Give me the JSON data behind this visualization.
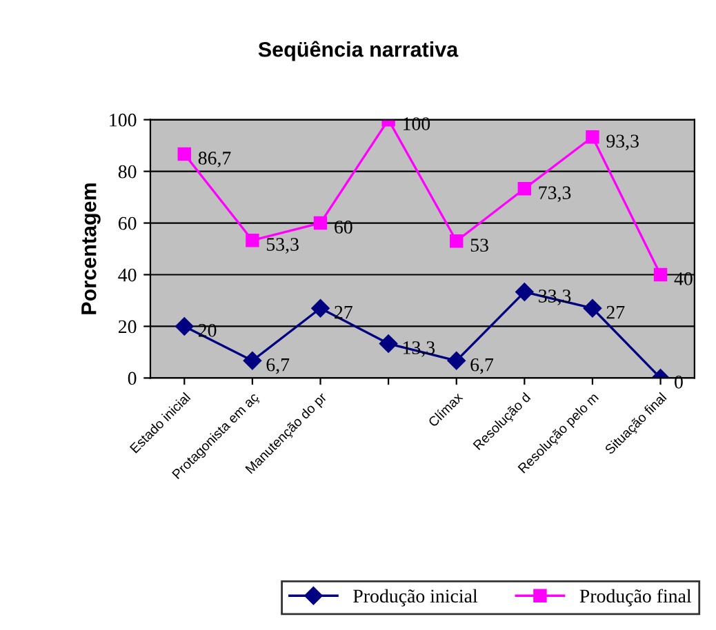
{
  "chart_data": {
    "type": "line",
    "title": "Seqüência narrativa",
    "ylabel": "Porcentagem",
    "categories": [
      "Estado inicial",
      "Protagonista em aç",
      "Manutenção do pr",
      null,
      "Clímax",
      "Resolução d",
      "Resolução pelo m",
      "Situação final"
    ],
    "series": [
      {
        "name": "Produção inicial",
        "color": "#000080",
        "values": [
          20,
          6.7,
          27,
          13.3,
          6.7,
          33.3,
          27,
          0
        ],
        "value_labels": [
          "20",
          "6,7",
          "27",
          "13,3",
          "6,7",
          "33,3",
          "27",
          "0"
        ],
        "marker": "diamond"
      },
      {
        "name": "Produção final",
        "color": "#ff00ff",
        "values": [
          86.7,
          53.3,
          60,
          100,
          53,
          73.3,
          93.3,
          40
        ],
        "value_labels": [
          "86,7",
          "53,3",
          "60",
          "100",
          "53",
          "73,3",
          "93,3",
          "40"
        ],
        "marker": "square"
      }
    ],
    "ylim": [
      0,
      100
    ],
    "yticks": [
      0,
      20,
      40,
      60,
      80,
      100
    ],
    "grid": "y",
    "legend": "bottom right",
    "line_style": "solid"
  }
}
